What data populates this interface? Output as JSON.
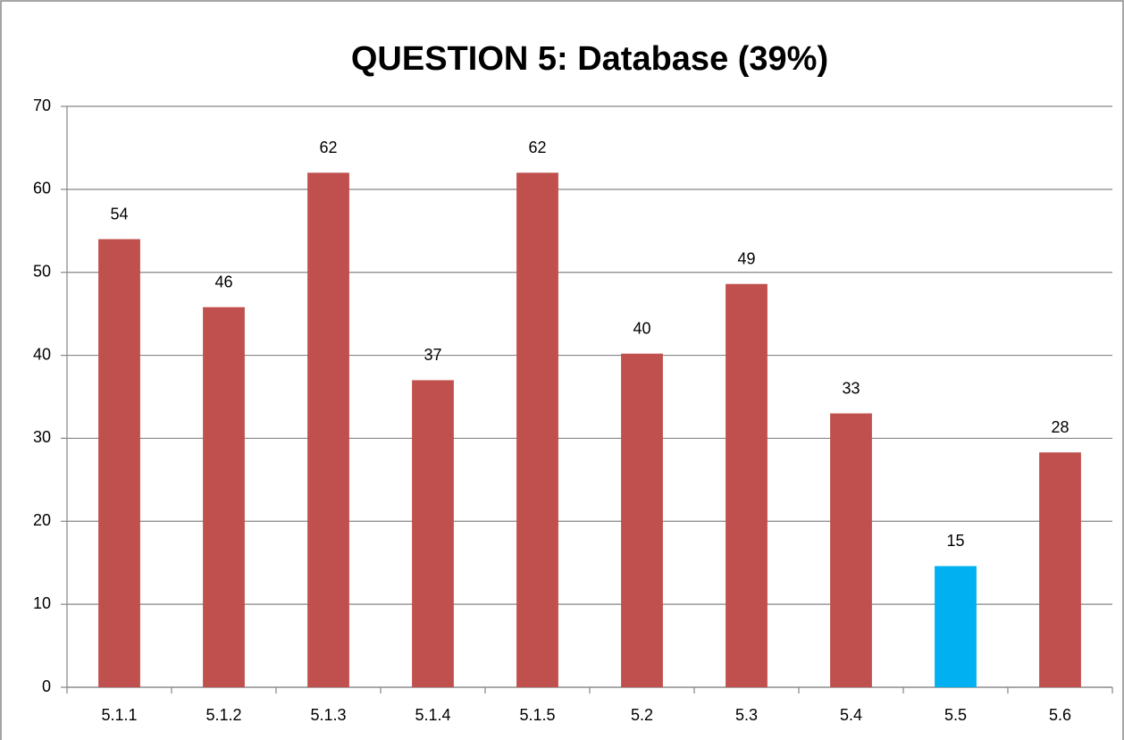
{
  "chart_data": {
    "type": "bar",
    "title": "QUESTION 5:  Database (39%)",
    "categories": [
      "5.1.1",
      "5.1.2",
      "5.1.3",
      "5.1.4",
      "5.1.5",
      "5.2",
      "5.3",
      "5.4",
      "5.5",
      "5.6"
    ],
    "values": [
      54,
      45.8,
      62,
      37,
      62,
      40.2,
      48.6,
      33,
      14.6,
      28.3
    ],
    "value_labels": [
      "54",
      "46",
      "62",
      "37",
      "62",
      "40",
      "49",
      "33",
      "15",
      "28"
    ],
    "colors": [
      "#c0504d",
      "#c0504d",
      "#c0504d",
      "#c0504d",
      "#c0504d",
      "#c0504d",
      "#c0504d",
      "#c0504d",
      "#00b0f0",
      "#c0504d"
    ],
    "ylim": [
      0,
      70
    ],
    "yticks": [
      0,
      10,
      20,
      30,
      40,
      50,
      60,
      70
    ],
    "grid": true
  }
}
